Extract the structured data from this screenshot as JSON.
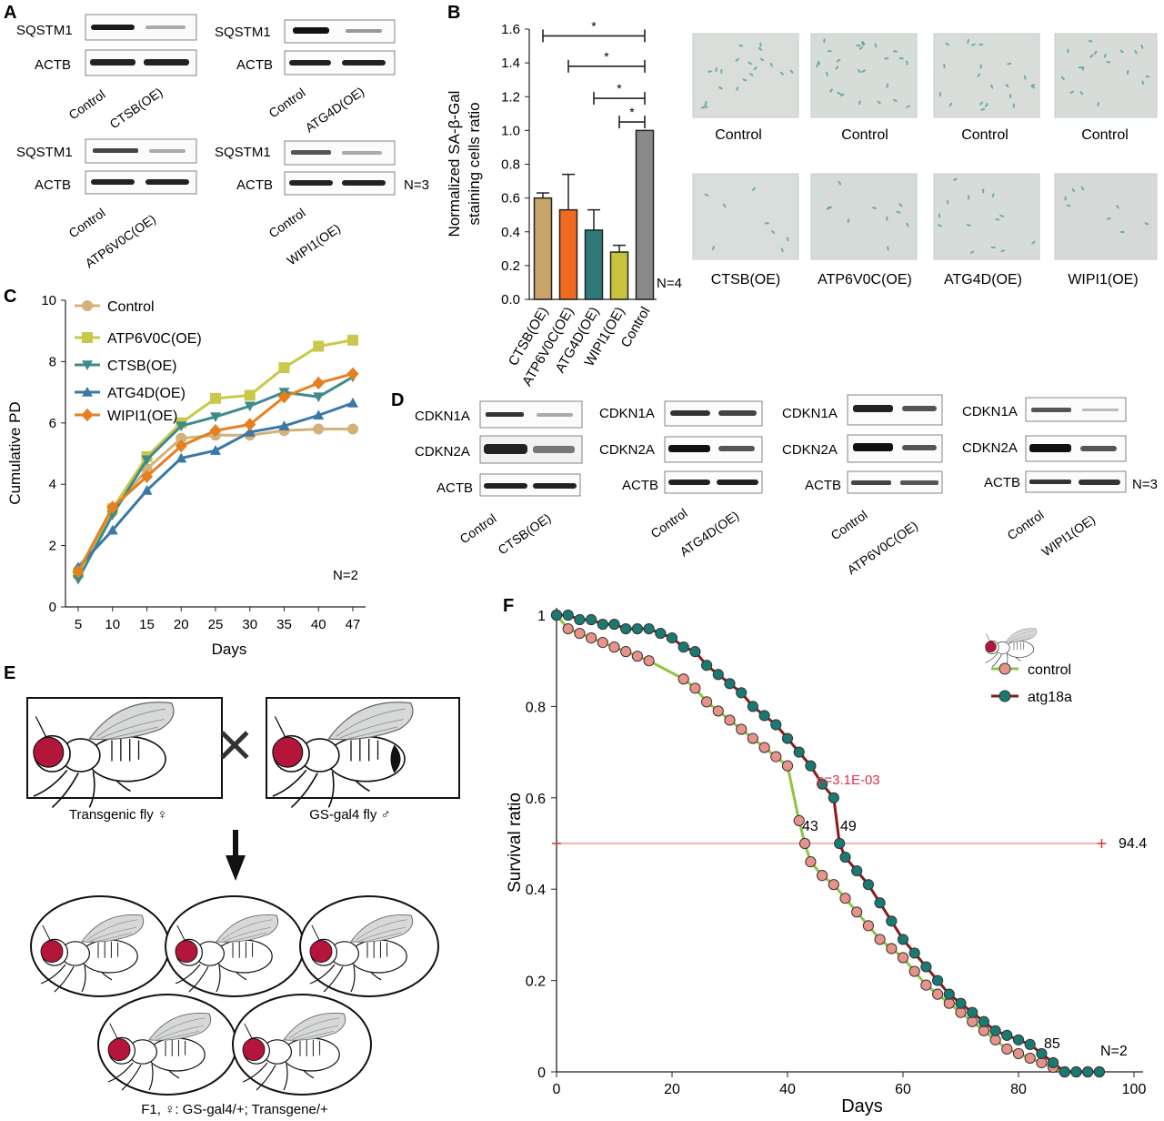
{
  "panels": {
    "A": {
      "label": "A",
      "n_label": "N=3",
      "blots": [
        {
          "rows": [
            "SQSTM1",
            "ACTB"
          ],
          "lanes": [
            "Control",
            "CTSB(OE)"
          ]
        },
        {
          "rows": [
            "SQSTM1",
            "ACTB"
          ],
          "lanes": [
            "Control",
            "ATG4D(OE)"
          ]
        },
        {
          "rows": [
            "SQSTM1",
            "ACTB"
          ],
          "lanes": [
            "Control",
            "ATP6V0C(OE)"
          ]
        },
        {
          "rows": [
            "SQSTM1",
            "ACTB"
          ],
          "lanes": [
            "Control",
            "WIPI1(OE)"
          ]
        }
      ]
    },
    "B": {
      "label": "B",
      "n_label": "N=4",
      "sig": [
        "*",
        "*",
        "*",
        "*"
      ],
      "micrograph_labels_top": [
        "Control",
        "Control",
        "Control",
        "Control"
      ],
      "micrograph_labels_bottom": [
        "CTSB(OE)",
        "ATP6V0C(OE)",
        "ATG4D(OE)",
        "WIPI1(OE)"
      ]
    },
    "C": {
      "label": "C",
      "n_label": "N=2"
    },
    "D": {
      "label": "D",
      "n_label": "N=3",
      "blots": [
        {
          "rows": [
            "CDKN1A",
            "CDKN2A",
            "ACTB"
          ],
          "lanes": [
            "Control",
            "CTSB(OE)"
          ]
        },
        {
          "rows": [
            "CDKN1A",
            "CDKN2A",
            "ACTB"
          ],
          "lanes": [
            "Control",
            "ATG4D(OE)"
          ]
        },
        {
          "rows": [
            "CDKN1A",
            "CDKN2A",
            "ACTB"
          ],
          "lanes": [
            "Control",
            "ATP6V0C(OE)"
          ]
        },
        {
          "rows": [
            "CDKN1A",
            "CDKN2A",
            "ACTB"
          ],
          "lanes": [
            "Control",
            "WIPI1(OE)"
          ]
        }
      ]
    },
    "E": {
      "label": "E",
      "parent1": "Transgenic fly ♀",
      "parent2": "GS-gal4 fly ♂",
      "cross_symbol": "×",
      "f1_label": "F1, ♀: GS-gal4/+; Transgene/+"
    },
    "F": {
      "label": "F",
      "n_label": "N=2",
      "p_value": "p=3.1E-03",
      "annotations": [
        "43",
        "49",
        "85",
        "94.4"
      ]
    }
  },
  "chart_data": [
    {
      "id": "B",
      "type": "bar",
      "ylabel": "Normalized SA-β-Gal staining cells ratio",
      "ylabel_lines": [
        "Normalized SA-β-Gal",
        "staining cells ratio"
      ],
      "categories": [
        "CTSB(OE)",
        "ATP6V0C(OE)",
        "ATG4D(OE)",
        "WIPI1(OE)",
        "Control"
      ],
      "values": [
        0.6,
        0.53,
        0.41,
        0.28,
        1.0
      ],
      "errors": [
        0.03,
        0.21,
        0.12,
        0.04,
        0
      ],
      "colors": [
        "#c9a46a",
        "#ef6a1f",
        "#2f7a78",
        "#c9c23c",
        "#8a8a8a"
      ],
      "ylim": [
        0,
        1.6
      ],
      "yticks": [
        "0.0",
        "0.2",
        "0.4",
        "0.6",
        "0.8",
        "1.0",
        "1.2",
        "1.4",
        "1.6"
      ]
    },
    {
      "id": "C",
      "type": "line",
      "xlabel": "Days",
      "ylabel": "Cumulative PD",
      "x": [
        5,
        10,
        15,
        20,
        25,
        30,
        35,
        40,
        47
      ],
      "xticks": [
        "5",
        "10",
        "15",
        "20",
        "25",
        "30",
        "35",
        "40",
        "47"
      ],
      "ylim": [
        0,
        10
      ],
      "yticks": [
        "0",
        "2",
        "4",
        "6",
        "8",
        "10"
      ],
      "series": [
        {
          "name": "Control",
          "color": "#d4b07a",
          "marker": "circle",
          "values": [
            1.2,
            3.1,
            4.5,
            5.5,
            5.6,
            5.6,
            5.75,
            5.8,
            5.8
          ]
        },
        {
          "name": "ATP6V0C(OE)",
          "color": "#c9c84a",
          "marker": "square",
          "values": [
            1.1,
            3.2,
            4.9,
            6.0,
            6.8,
            6.9,
            7.8,
            8.5,
            8.7
          ]
        },
        {
          "name": "CTSB(OE)",
          "color": "#3f8a8a",
          "marker": "triangle-down",
          "values": [
            0.9,
            3.0,
            4.8,
            5.9,
            6.2,
            6.55,
            7.0,
            6.85,
            7.5
          ]
        },
        {
          "name": "ATG4D(OE)",
          "color": "#3a78a8",
          "marker": "triangle-up",
          "values": [
            1.3,
            2.5,
            3.8,
            4.85,
            5.1,
            5.7,
            5.9,
            6.25,
            6.65
          ]
        },
        {
          "name": "WIPI1(OE)",
          "color": "#e58020",
          "marker": "diamond",
          "values": [
            1.15,
            3.25,
            4.25,
            5.25,
            5.75,
            5.95,
            6.85,
            7.3,
            7.6
          ]
        }
      ]
    },
    {
      "id": "F",
      "type": "line",
      "xlabel": "Days",
      "ylabel": "Survival ratio",
      "xlim": [
        0,
        100
      ],
      "ylim": [
        0,
        1
      ],
      "xticks": [
        "0",
        "20",
        "40",
        "60",
        "80",
        "100"
      ],
      "yticks": [
        "0",
        "0.2",
        "0.4",
        "0.6",
        "0.8",
        "1"
      ],
      "median_line": {
        "y": 0.5,
        "x_start": 0,
        "x_end": 94.4
      },
      "series": [
        {
          "name": "control",
          "line_color": "#8cc63f",
          "marker_color": "#e8928a",
          "x": [
            0,
            2,
            4,
            6,
            8,
            10,
            12,
            14,
            16,
            22,
            24,
            26,
            28,
            30,
            32,
            34,
            36,
            38,
            40,
            42,
            43,
            44,
            46,
            48,
            50,
            52,
            54,
            56,
            58,
            60,
            62,
            64,
            66,
            68,
            70,
            72,
            74,
            76,
            78,
            80,
            82,
            84,
            86,
            88,
            90,
            92,
            94
          ],
          "values": [
            1.0,
            0.97,
            0.96,
            0.95,
            0.94,
            0.93,
            0.92,
            0.91,
            0.9,
            0.86,
            0.84,
            0.81,
            0.79,
            0.77,
            0.75,
            0.73,
            0.71,
            0.69,
            0.67,
            0.55,
            0.5,
            0.46,
            0.43,
            0.41,
            0.38,
            0.35,
            0.32,
            0.29,
            0.27,
            0.25,
            0.22,
            0.19,
            0.17,
            0.15,
            0.13,
            0.11,
            0.09,
            0.07,
            0.05,
            0.04,
            0.03,
            0.02,
            0.01,
            0.0,
            0.0,
            0.0,
            0.0
          ]
        },
        {
          "name": "atg18a",
          "line_color": "#8b1a1a",
          "marker_color": "#1a7a72",
          "x": [
            0,
            2,
            4,
            6,
            8,
            10,
            12,
            14,
            16,
            18,
            20,
            22,
            24,
            26,
            28,
            30,
            32,
            34,
            36,
            38,
            40,
            42,
            44,
            46,
            48,
            49,
            50,
            52,
            54,
            56,
            58,
            60,
            62,
            64,
            66,
            68,
            70,
            72,
            74,
            76,
            78,
            80,
            82,
            84,
            86,
            88,
            90,
            92,
            94
          ],
          "values": [
            1.0,
            1.0,
            0.99,
            0.99,
            0.98,
            0.98,
            0.97,
            0.97,
            0.97,
            0.96,
            0.95,
            0.93,
            0.92,
            0.89,
            0.87,
            0.85,
            0.83,
            0.8,
            0.78,
            0.76,
            0.73,
            0.7,
            0.67,
            0.63,
            0.6,
            0.5,
            0.47,
            0.44,
            0.41,
            0.37,
            0.33,
            0.29,
            0.26,
            0.23,
            0.2,
            0.17,
            0.15,
            0.13,
            0.11,
            0.09,
            0.08,
            0.07,
            0.06,
            0.04,
            0.02,
            0.0,
            0.0,
            0.0,
            0.0
          ]
        }
      ]
    }
  ]
}
